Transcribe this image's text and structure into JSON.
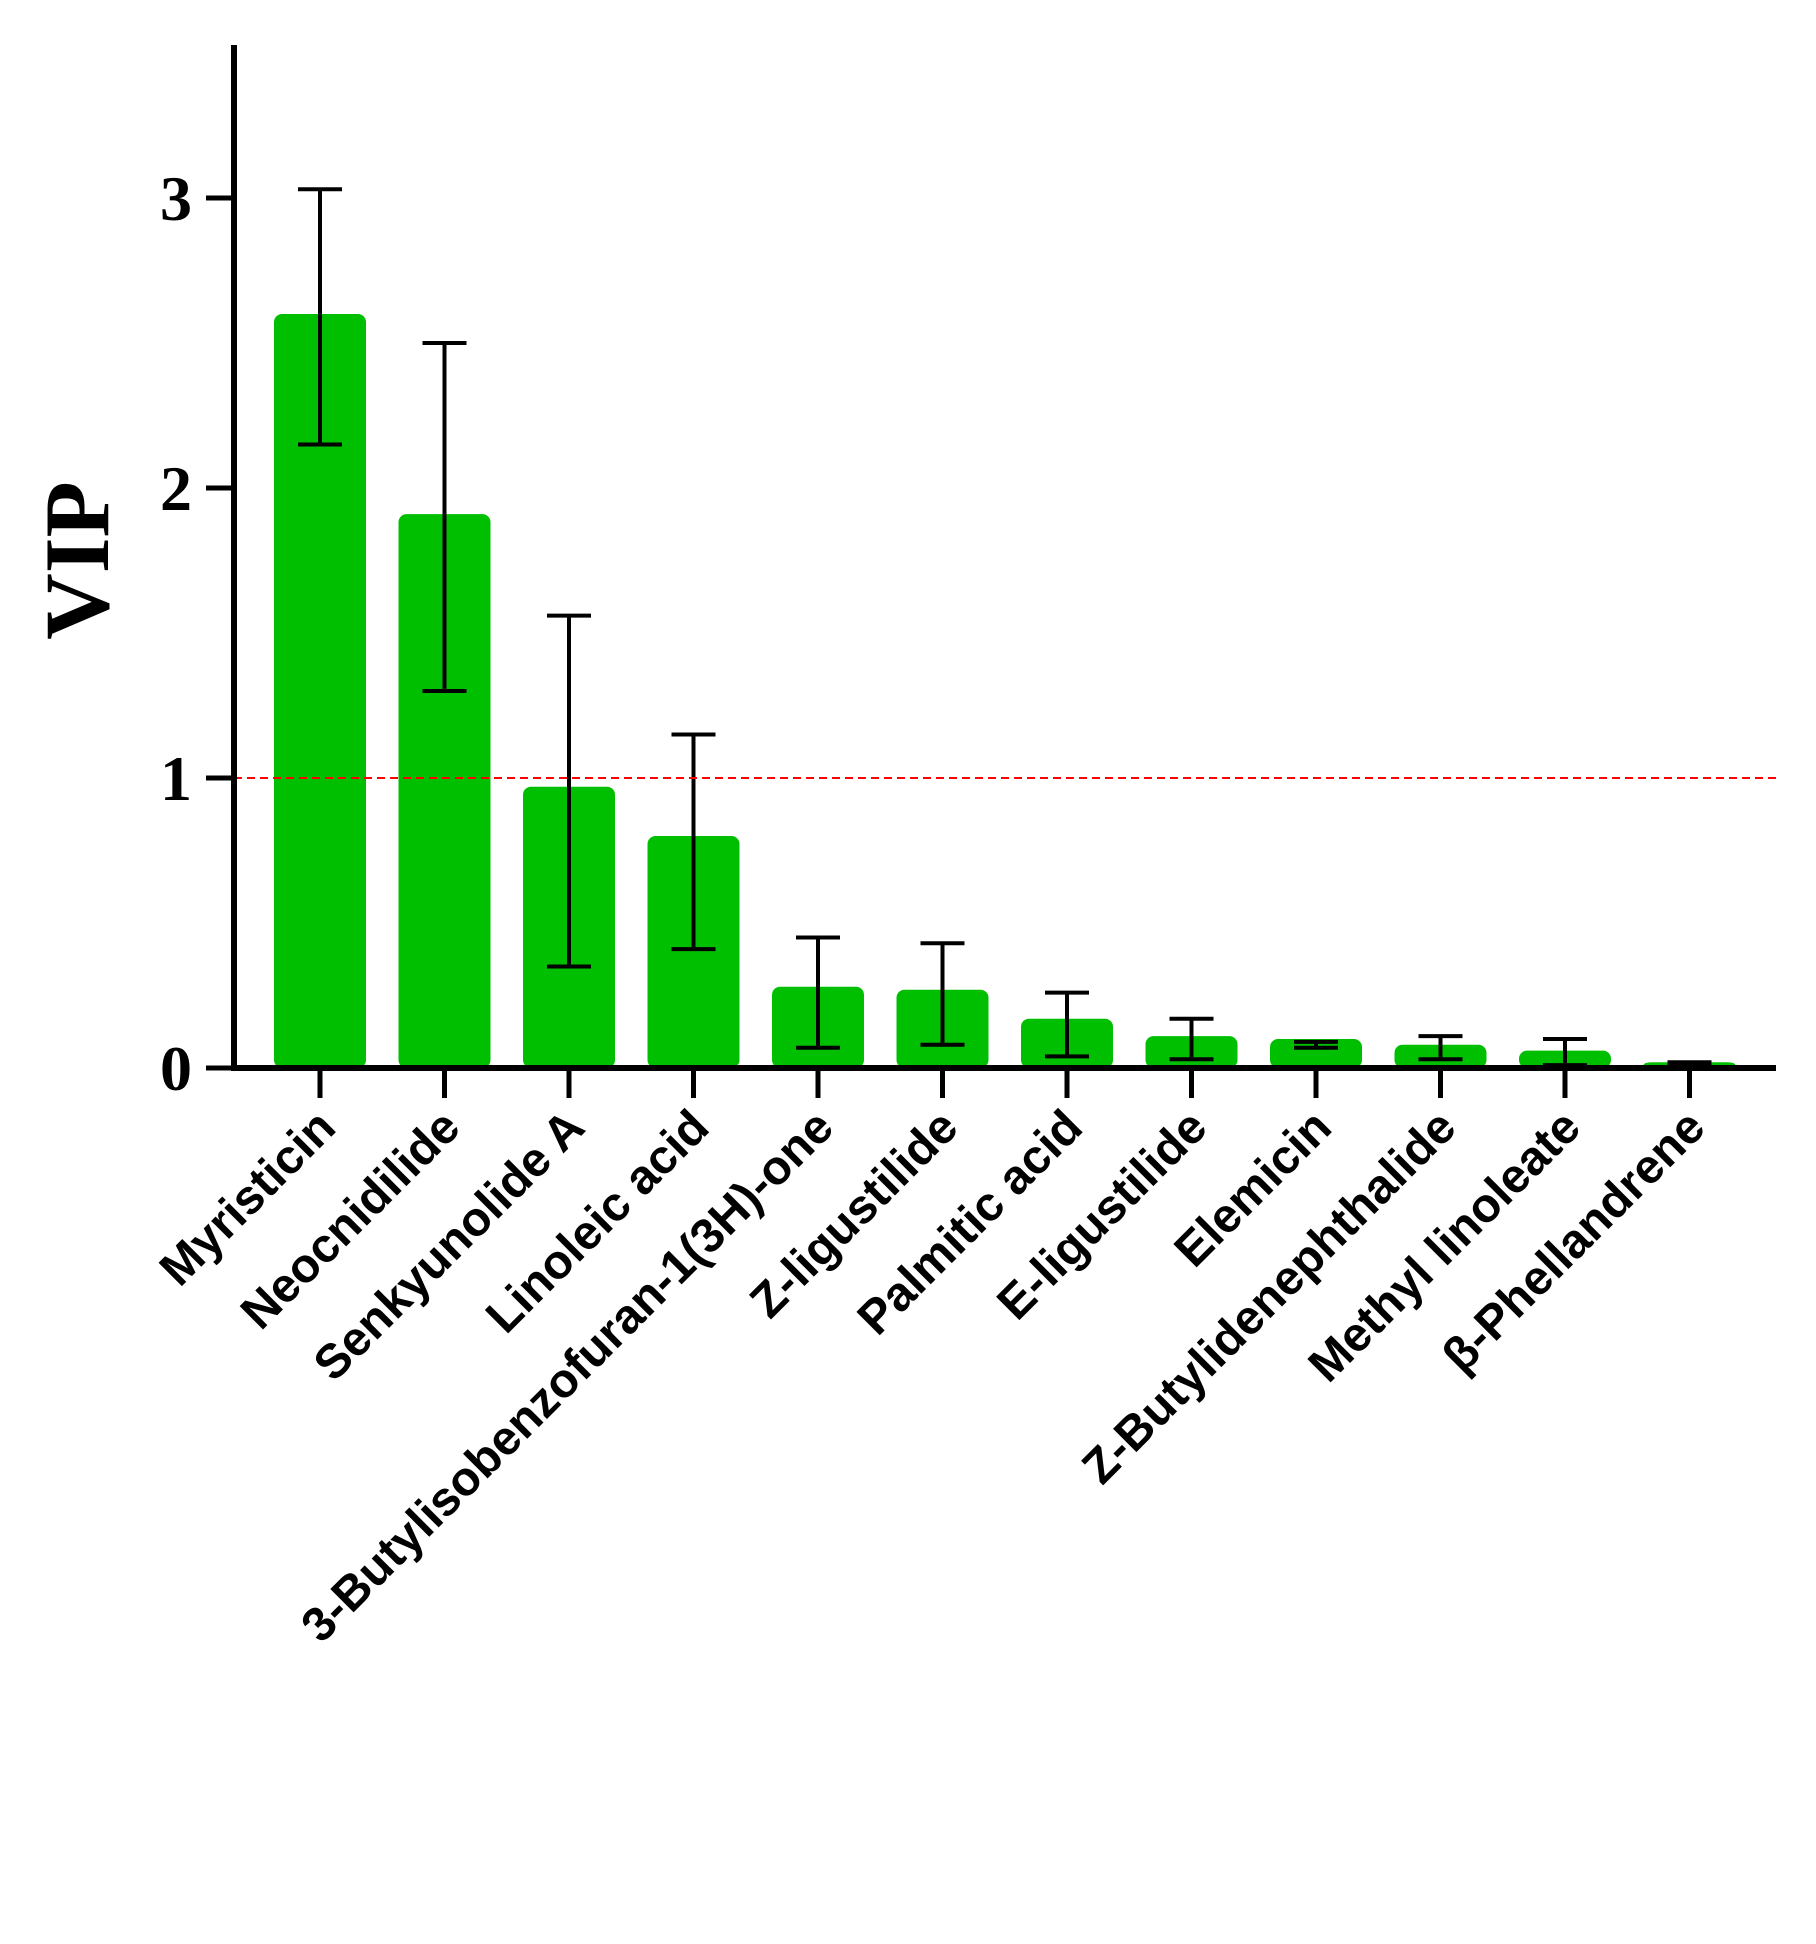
{
  "chart_data": {
    "type": "bar",
    "ylabel": "VIP",
    "ylim": [
      0,
      3.5
    ],
    "yticks": [
      "0",
      "1",
      "2",
      "3"
    ],
    "categories": [
      "Myristicin",
      "Neocnidilide",
      "Senkyunolide A",
      "Linoleic acid",
      "3-Butylisobenzofuran-1(3H)-one",
      "Z-ligustilide",
      "Palmitic acid",
      "E-ligustilide",
      "Elemicin",
      "Z-Butylidenephthalide",
      "Methyl linoleate",
      "β-Phellandrene"
    ],
    "values": [
      2.6,
      1.91,
      0.97,
      0.8,
      0.28,
      0.27,
      0.17,
      0.11,
      0.1,
      0.08,
      0.06,
      0.02
    ],
    "error_low": [
      2.15,
      1.3,
      0.35,
      0.41,
      0.07,
      0.08,
      0.04,
      0.03,
      0.07,
      0.03,
      0.01,
      0.01
    ],
    "error_high": [
      3.03,
      2.5,
      1.56,
      1.15,
      0.45,
      0.43,
      0.26,
      0.17,
      0.09,
      0.11,
      0.1,
      0.02
    ],
    "reference_line": 1,
    "colors": {
      "bar": "#00bf00",
      "reference_line": "#ff0000",
      "axis": "#000000"
    },
    "grid": false
  }
}
